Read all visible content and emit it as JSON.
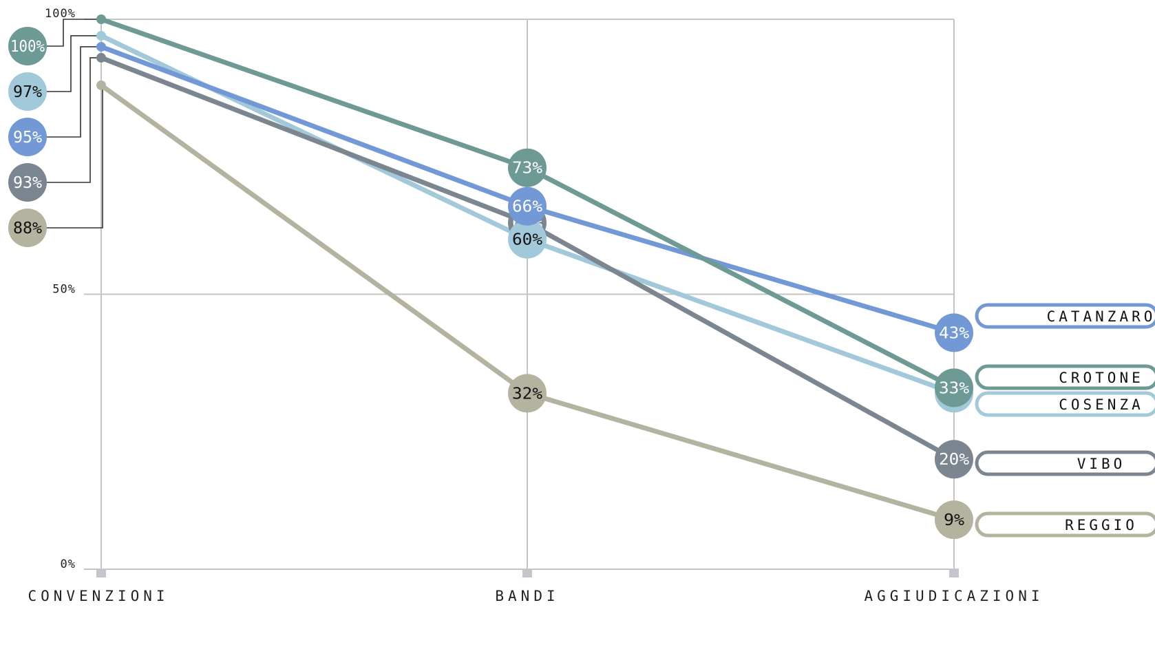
{
  "chart_data": {
    "type": "line",
    "categories": [
      "CONVENZIONI",
      "BANDI",
      "AGGIUDICAZIONI"
    ],
    "ylim": [
      0,
      100
    ],
    "yticks": [
      "0%",
      "50%",
      "100%"
    ],
    "grid": true,
    "series": [
      {
        "name": "CROTONE",
        "values": [
          100,
          73,
          33
        ],
        "labels": [
          "100%",
          "73%",
          "33%"
        ],
        "color": "#6e9a96",
        "text_color": "#ffffff"
      },
      {
        "name": "CATANZARO",
        "values": [
          95,
          66,
          43
        ],
        "labels": [
          "95%",
          "66%",
          "43%"
        ],
        "color": "#7299d6",
        "text_color": "#ffffff"
      },
      {
        "name": "COSENZA",
        "values": [
          97,
          60,
          32
        ],
        "labels": [
          "97%",
          "60%",
          "32%"
        ],
        "color": "#a2c9d9",
        "text_color": "#111111"
      },
      {
        "name": "VIBO",
        "values": [
          93,
          63,
          20
        ],
        "labels": [
          "93%",
          "63%",
          "20%"
        ],
        "color": "#7b8690",
        "text_color": "#ffffff"
      },
      {
        "name": "REGGIO",
        "values": [
          88,
          32,
          9
        ],
        "labels": [
          "88%",
          "32%",
          "9%"
        ],
        "color": "#b3b3a0",
        "text_color": "#111111"
      }
    ]
  }
}
